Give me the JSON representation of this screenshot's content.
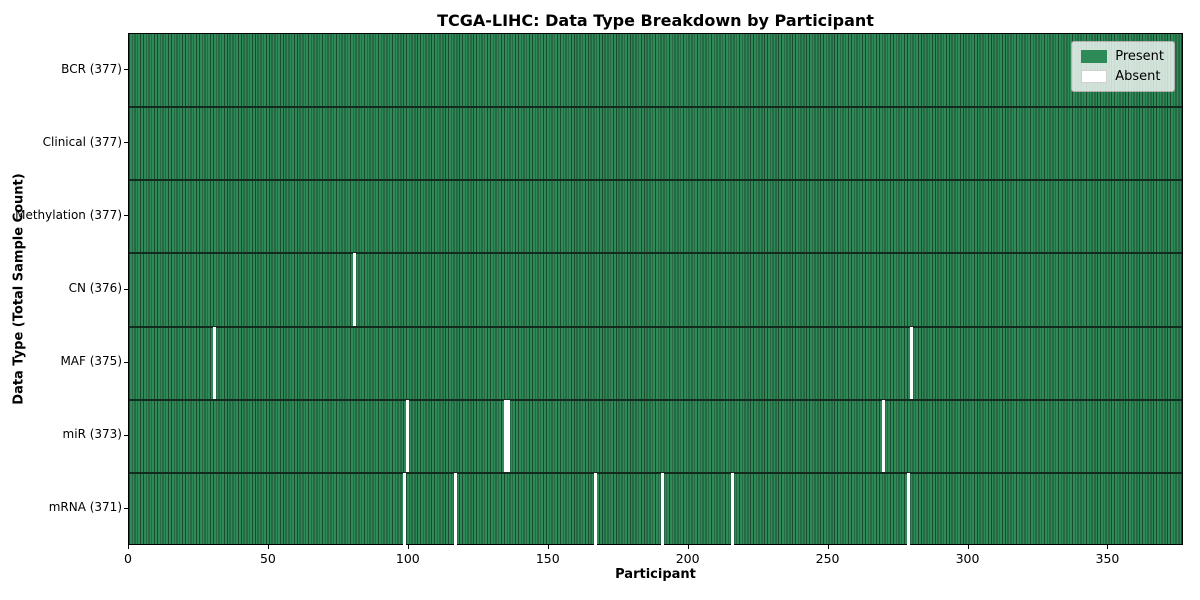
{
  "title": "TCGA-LIHC: Data Type Breakdown by Participant",
  "xlabel": "Participant",
  "ylabel": "Data Type (Total Sample Count)",
  "legend": {
    "present_label": "Present",
    "absent_label": "Absent",
    "background": "rgba(255,255,255,0.78)"
  },
  "colors": {
    "present_fill": "#2e8b57",
    "present_edge": "#1c4a31",
    "absent_fill": "#ffffff",
    "row_separator": "#122b1c",
    "axis_border": "#000000",
    "text": "#000000"
  },
  "chart_data": {
    "type": "heatmap",
    "title": "TCGA-LIHC: Data Type Breakdown by Participant",
    "xlabel": "Participant",
    "ylabel": "Data Type (Total Sample Count)",
    "n_participants": 377,
    "x_ticks": [
      0,
      50,
      100,
      150,
      200,
      250,
      300,
      350
    ],
    "x_range": [
      0,
      377
    ],
    "legend_entries": [
      "Present",
      "Absent"
    ],
    "legend_position": "upper right",
    "rows": [
      {
        "label": "BCR (377)",
        "data_type": "BCR",
        "total_samples": 377,
        "absent_count": 0,
        "absent_participants": []
      },
      {
        "label": "Clinical (377)",
        "data_type": "Clinical",
        "total_samples": 377,
        "absent_count": 0,
        "absent_participants": []
      },
      {
        "label": "Methylation (377)",
        "data_type": "Methylation",
        "total_samples": 377,
        "absent_count": 0,
        "absent_participants": []
      },
      {
        "label": "CN (376)",
        "data_type": "CN",
        "total_samples": 376,
        "absent_count": 1,
        "absent_participants": [
          80
        ]
      },
      {
        "label": "MAF (375)",
        "data_type": "MAF",
        "total_samples": 375,
        "absent_count": 2,
        "absent_participants": [
          30,
          279
        ]
      },
      {
        "label": "miR (373)",
        "data_type": "miR",
        "total_samples": 373,
        "absent_count": 4,
        "absent_participants": [
          99,
          134,
          135,
          269
        ]
      },
      {
        "label": "mRNA (371)",
        "data_type": "mRNA",
        "total_samples": 371,
        "absent_count": 6,
        "absent_participants": [
          98,
          116,
          166,
          190,
          215,
          278
        ]
      }
    ]
  }
}
